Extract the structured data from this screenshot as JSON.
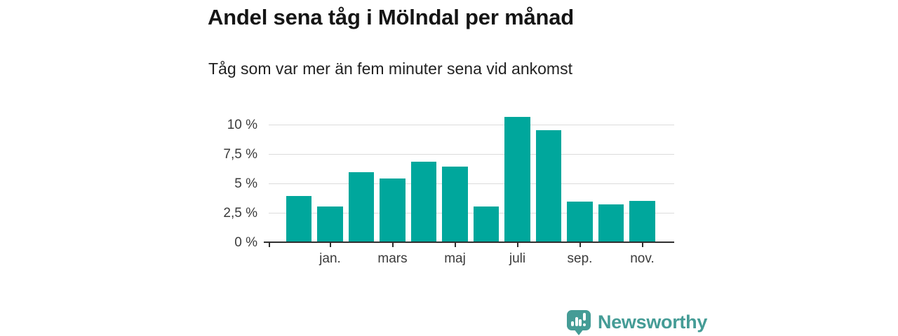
{
  "chart_data": {
    "type": "bar",
    "title": "Andel sena tåg i Mölndal per månad",
    "subtitle": "Tåg som var mer än fem minuter sena vid ankomst",
    "categories": [
      "",
      "jan.",
      "",
      "mars",
      "",
      "maj",
      "",
      "juli",
      "",
      "sep.",
      "",
      "nov."
    ],
    "values": [
      4.0,
      3.1,
      6.0,
      5.5,
      6.9,
      6.5,
      3.1,
      10.7,
      9.6,
      3.5,
      3.3,
      3.6
    ],
    "unit": "%",
    "xlabel": "",
    "ylabel": "",
    "y_ticks": [
      {
        "value": 0,
        "label": "0 %"
      },
      {
        "value": 2.5,
        "label": "2,5 %"
      },
      {
        "value": 5,
        "label": "5 %"
      },
      {
        "value": 7.5,
        "label": "7,5 %"
      },
      {
        "value": 10,
        "label": "10 %"
      }
    ],
    "ylim": [
      0,
      11.13
    ],
    "grid": "horizontal",
    "legend": "none",
    "bar_color": "#00a79c",
    "gridline_color": "#dcdcdc",
    "axis_color": "#2f2f2f"
  },
  "footer": {
    "brand": "Newsworthy",
    "logo_icon": "bar-chart-speech-bubble",
    "brand_color": "#459c96"
  }
}
